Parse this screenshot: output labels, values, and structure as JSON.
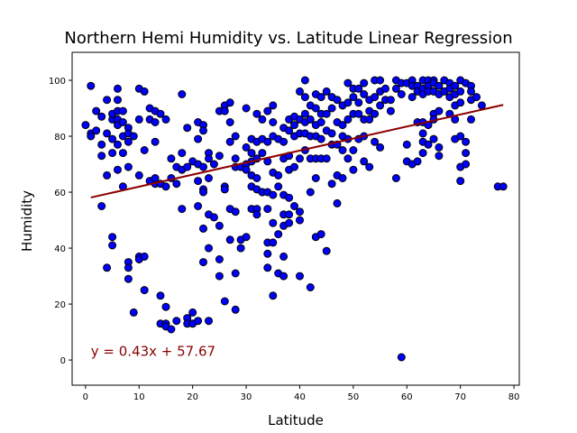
{
  "chart_data": {
    "type": "scatter",
    "title": "Northern Hemi Humidity vs. Latitude Linear Regression",
    "xlabel": "Latitude",
    "ylabel": "Humidity",
    "xlim": [
      -2.5,
      81
    ],
    "ylim": [
      -9,
      110
    ],
    "x_ticks": [
      0,
      10,
      20,
      30,
      40,
      50,
      60,
      70,
      80
    ],
    "y_ticks": [
      0,
      20,
      40,
      60,
      80,
      100
    ],
    "grid": false,
    "marker_color": "#0000ff",
    "marker_edge_color": "#000000",
    "line_color": "#8b0000",
    "annotation": {
      "text": "y = 0.43x + 57.67",
      "x": 1,
      "y": 1.5,
      "color": "#8b0000"
    },
    "regression": {
      "slope": 0.43,
      "intercept": 57.67,
      "x_range": [
        1,
        78
      ]
    },
    "points": [
      [
        0,
        84
      ],
      [
        1,
        98
      ],
      [
        1,
        81
      ],
      [
        1,
        80
      ],
      [
        2,
        82
      ],
      [
        2,
        89
      ],
      [
        3,
        87
      ],
      [
        3,
        77
      ],
      [
        3,
        73
      ],
      [
        3,
        55
      ],
      [
        4,
        93
      ],
      [
        4,
        81
      ],
      [
        4,
        66
      ],
      [
        4,
        33
      ],
      [
        5,
        86
      ],
      [
        5,
        88
      ],
      [
        5,
        79
      ],
      [
        5,
        74
      ],
      [
        5,
        44
      ],
      [
        5,
        41
      ],
      [
        6,
        97
      ],
      [
        6,
        93
      ],
      [
        6,
        89
      ],
      [
        6,
        86
      ],
      [
        6,
        84
      ],
      [
        6,
        77
      ],
      [
        6,
        68
      ],
      [
        7,
        89
      ],
      [
        7,
        85
      ],
      [
        7,
        80
      ],
      [
        7,
        74
      ],
      [
        7,
        62
      ],
      [
        8,
        83
      ],
      [
        8,
        81
      ],
      [
        8,
        78
      ],
      [
        8,
        69
      ],
      [
        8,
        35
      ],
      [
        8,
        33
      ],
      [
        8,
        29
      ],
      [
        9,
        80
      ],
      [
        9,
        17
      ],
      [
        10,
        97
      ],
      [
        10,
        86
      ],
      [
        10,
        66
      ],
      [
        10,
        37
      ],
      [
        10,
        36
      ],
      [
        11,
        96
      ],
      [
        11,
        75
      ],
      [
        11,
        37
      ],
      [
        11,
        25
      ],
      [
        12,
        90
      ],
      [
        12,
        86
      ],
      [
        12,
        64
      ],
      [
        13,
        89
      ],
      [
        13,
        85
      ],
      [
        13,
        78
      ],
      [
        13,
        63
      ],
      [
        13,
        65
      ],
      [
        14,
        88
      ],
      [
        14,
        63
      ],
      [
        14,
        23
      ],
      [
        14,
        13
      ],
      [
        15,
        86
      ],
      [
        15,
        62
      ],
      [
        15,
        19
      ],
      [
        15,
        13
      ],
      [
        15,
        12
      ],
      [
        16,
        72
      ],
      [
        16,
        65
      ],
      [
        16,
        11
      ],
      [
        17,
        69
      ],
      [
        17,
        63
      ],
      [
        17,
        14
      ],
      [
        18,
        95
      ],
      [
        18,
        74
      ],
      [
        18,
        68
      ],
      [
        18,
        54
      ],
      [
        19,
        83
      ],
      [
        19,
        69
      ],
      [
        19,
        15
      ],
      [
        19,
        13
      ],
      [
        20,
        71
      ],
      [
        20,
        17
      ],
      [
        20,
        13
      ],
      [
        21,
        85
      ],
      [
        21,
        79
      ],
      [
        21,
        70
      ],
      [
        21,
        64
      ],
      [
        21,
        55
      ],
      [
        21,
        14
      ],
      [
        22,
        84
      ],
      [
        22,
        82
      ],
      [
        22,
        69
      ],
      [
        22,
        61
      ],
      [
        22,
        60
      ],
      [
        22,
        47
      ],
      [
        22,
        35
      ],
      [
        23,
        74
      ],
      [
        23,
        72
      ],
      [
        23,
        65
      ],
      [
        23,
        52
      ],
      [
        23,
        40
      ],
      [
        23,
        14
      ],
      [
        24,
        70
      ],
      [
        24,
        51
      ],
      [
        25,
        89
      ],
      [
        25,
        73
      ],
      [
        25,
        48
      ],
      [
        25,
        36
      ],
      [
        25,
        30
      ],
      [
        26,
        91
      ],
      [
        26,
        89
      ],
      [
        26,
        62
      ],
      [
        26,
        61
      ],
      [
        26,
        21
      ],
      [
        27,
        92
      ],
      [
        27,
        85
      ],
      [
        27,
        78
      ],
      [
        27,
        54
      ],
      [
        27,
        43
      ],
      [
        28,
        80
      ],
      [
        28,
        72
      ],
      [
        28,
        69
      ],
      [
        28,
        53
      ],
      [
        28,
        31
      ],
      [
        28,
        18
      ],
      [
        29,
        69
      ],
      [
        29,
        43
      ],
      [
        29,
        40
      ],
      [
        30,
        90
      ],
      [
        30,
        76
      ],
      [
        30,
        70
      ],
      [
        30,
        68
      ],
      [
        30,
        44
      ],
      [
        31,
        79
      ],
      [
        31,
        74
      ],
      [
        31,
        71
      ],
      [
        31,
        66
      ],
      [
        31,
        62
      ],
      [
        31,
        54
      ],
      [
        32,
        88
      ],
      [
        32,
        78
      ],
      [
        32,
        72
      ],
      [
        32,
        65
      ],
      [
        32,
        61
      ],
      [
        32,
        54
      ],
      [
        32,
        52
      ],
      [
        33,
        86
      ],
      [
        33,
        79
      ],
      [
        33,
        74
      ],
      [
        33,
        60
      ],
      [
        33,
        60
      ],
      [
        34,
        89
      ],
      [
        34,
        78
      ],
      [
        34,
        71
      ],
      [
        34,
        60
      ],
      [
        34,
        54
      ],
      [
        34,
        42
      ],
      [
        34,
        38
      ],
      [
        34,
        33
      ],
      [
        35,
        91
      ],
      [
        35,
        85
      ],
      [
        35,
        80
      ],
      [
        35,
        67
      ],
      [
        35,
        59
      ],
      [
        35,
        49
      ],
      [
        35,
        42
      ],
      [
        35,
        23
      ],
      [
        36,
        79
      ],
      [
        36,
        66
      ],
      [
        36,
        62
      ],
      [
        36,
        45
      ],
      [
        36,
        31
      ],
      [
        37,
        83
      ],
      [
        37,
        78
      ],
      [
        37,
        72
      ],
      [
        37,
        59
      ],
      [
        37,
        52
      ],
      [
        37,
        48
      ],
      [
        37,
        37
      ],
      [
        37,
        30
      ],
      [
        38,
        86
      ],
      [
        38,
        82
      ],
      [
        38,
        73
      ],
      [
        38,
        68
      ],
      [
        38,
        58
      ],
      [
        38,
        52
      ],
      [
        38,
        49
      ],
      [
        39,
        87
      ],
      [
        39,
        84
      ],
      [
        39,
        80
      ],
      [
        39,
        69
      ],
      [
        39,
        55
      ],
      [
        40,
        96
      ],
      [
        40,
        86
      ],
      [
        40,
        81
      ],
      [
        40,
        72
      ],
      [
        40,
        53
      ],
      [
        40,
        50
      ],
      [
        40,
        30
      ],
      [
        41,
        100
      ],
      [
        41,
        94
      ],
      [
        41,
        88
      ],
      [
        41,
        85
      ],
      [
        41,
        81
      ],
      [
        41,
        75
      ],
      [
        42,
        91
      ],
      [
        42,
        86
      ],
      [
        42,
        80
      ],
      [
        42,
        72
      ],
      [
        42,
        60
      ],
      [
        42,
        26
      ],
      [
        43,
        95
      ],
      [
        43,
        90
      ],
      [
        43,
        84
      ],
      [
        43,
        80
      ],
      [
        43,
        72
      ],
      [
        43,
        65
      ],
      [
        43,
        44
      ],
      [
        44,
        94
      ],
      [
        44,
        88
      ],
      [
        44,
        85
      ],
      [
        44,
        79
      ],
      [
        44,
        72
      ],
      [
        44,
        45
      ],
      [
        45,
        96
      ],
      [
        45,
        88
      ],
      [
        45,
        82
      ],
      [
        45,
        72
      ],
      [
        45,
        39
      ],
      [
        46,
        94
      ],
      [
        46,
        90
      ],
      [
        46,
        81
      ],
      [
        46,
        77
      ],
      [
        46,
        63
      ],
      [
        47,
        93
      ],
      [
        47,
        85
      ],
      [
        47,
        77
      ],
      [
        47,
        66
      ],
      [
        47,
        56
      ],
      [
        48,
        91
      ],
      [
        48,
        84
      ],
      [
        48,
        80
      ],
      [
        48,
        75
      ],
      [
        48,
        65
      ],
      [
        49,
        99
      ],
      [
        49,
        92
      ],
      [
        49,
        86
      ],
      [
        49,
        79
      ],
      [
        49,
        72
      ],
      [
        50,
        97
      ],
      [
        50,
        94
      ],
      [
        50,
        88
      ],
      [
        50,
        75
      ],
      [
        50,
        68
      ],
      [
        51,
        97
      ],
      [
        51,
        92
      ],
      [
        51,
        88
      ],
      [
        51,
        79
      ],
      [
        52,
        99
      ],
      [
        52,
        95
      ],
      [
        52,
        86
      ],
      [
        52,
        80
      ],
      [
        52,
        71
      ],
      [
        53,
        93
      ],
      [
        53,
        89
      ],
      [
        53,
        86
      ],
      [
        53,
        69
      ],
      [
        54,
        100
      ],
      [
        54,
        94
      ],
      [
        54,
        88
      ],
      [
        54,
        78
      ],
      [
        55,
        100
      ],
      [
        55,
        96
      ],
      [
        55,
        91
      ],
      [
        55,
        76
      ],
      [
        56,
        97
      ],
      [
        56,
        93
      ],
      [
        57,
        93
      ],
      [
        57,
        89
      ],
      [
        58,
        100
      ],
      [
        58,
        97
      ],
      [
        58,
        65
      ],
      [
        59,
        99
      ],
      [
        59,
        95
      ],
      [
        59,
        1
      ],
      [
        60,
        99
      ],
      [
        60,
        77
      ],
      [
        60,
        71
      ],
      [
        61,
        100
      ],
      [
        61,
        98
      ],
      [
        61,
        94
      ],
      [
        61,
        70
      ],
      [
        62,
        98
      ],
      [
        62,
        96
      ],
      [
        62,
        85
      ],
      [
        62,
        71
      ],
      [
        63,
        100
      ],
      [
        63,
        97
      ],
      [
        63,
        95
      ],
      [
        63,
        85
      ],
      [
        63,
        81
      ],
      [
        63,
        78
      ],
      [
        63,
        74
      ],
      [
        64,
        100
      ],
      [
        64,
        98
      ],
      [
        64,
        96
      ],
      [
        64,
        84
      ],
      [
        64,
        77
      ],
      [
        65,
        100
      ],
      [
        65,
        99
      ],
      [
        65,
        96
      ],
      [
        65,
        88
      ],
      [
        65,
        86
      ],
      [
        65,
        79
      ],
      [
        66,
        98
      ],
      [
        66,
        95
      ],
      [
        66,
        89
      ],
      [
        66,
        76
      ],
      [
        66,
        73
      ],
      [
        67,
        100
      ],
      [
        67,
        96
      ],
      [
        68,
        99
      ],
      [
        68,
        97
      ],
      [
        68,
        94
      ],
      [
        68,
        88
      ],
      [
        69,
        98
      ],
      [
        69,
        95
      ],
      [
        69,
        91
      ],
      [
        69,
        86
      ],
      [
        69,
        79
      ],
      [
        70,
        100
      ],
      [
        70,
        96
      ],
      [
        70,
        92
      ],
      [
        70,
        80
      ],
      [
        70,
        69
      ],
      [
        70,
        64
      ],
      [
        71,
        99
      ],
      [
        71,
        78
      ],
      [
        71,
        74
      ],
      [
        71,
        70
      ],
      [
        72,
        98
      ],
      [
        72,
        96
      ],
      [
        72,
        93
      ],
      [
        72,
        86
      ],
      [
        73,
        94
      ],
      [
        74,
        91
      ],
      [
        77,
        62
      ],
      [
        78,
        62
      ]
    ]
  }
}
